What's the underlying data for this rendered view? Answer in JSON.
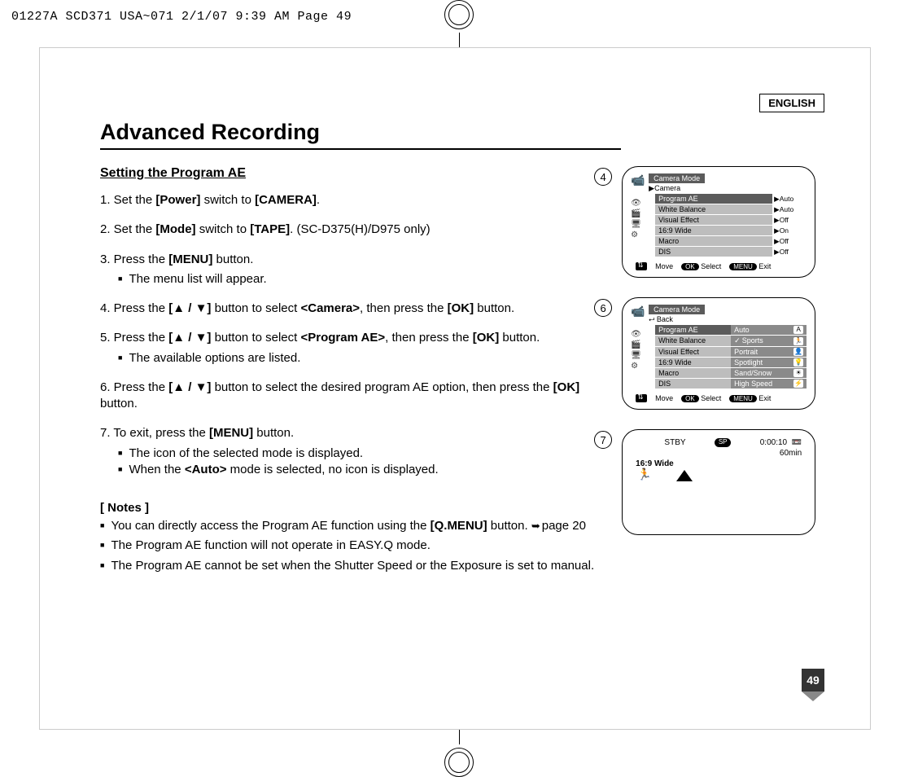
{
  "header_strip": "01227A SCD371 USA~071  2/1/07 9:39 AM  Page 49",
  "language_label": "ENGLISH",
  "page_title": "Advanced Recording",
  "section_subtitle": "Setting the Program AE",
  "steps": [
    {
      "text_html": "1. Set the <b>[Power]</b> switch to <b>[CAMERA]</b>."
    },
    {
      "text_html": "2. Set the <b>[Mode]</b> switch to <b>[TAPE]</b>. (SC-D375(H)/D975 only)"
    },
    {
      "text_html": "3. Press the <b>[MENU]</b> button.",
      "sub": [
        "The menu list will appear."
      ]
    },
    {
      "text_html": "4. Press the <b>[▲ / ▼]</b> button to select <b>&lt;Camera&gt;</b>, then press the <b>[OK]</b> button."
    },
    {
      "text_html": "5. Press the <b>[▲ / ▼]</b> button to select <b>&lt;Program AE&gt;</b>, then press the <b>[OK]</b> button.",
      "sub": [
        "The available options are listed."
      ]
    },
    {
      "text_html": "6. Press the <b>[▲ / ▼]</b> button to select the desired program AE option, then press the <b>[OK]</b> button."
    },
    {
      "text_html": "7. To exit, press the <b>[MENU]</b> button.",
      "sub": [
        "The icon of the selected mode is displayed.",
        "When the <b>&lt;Auto&gt;</b> mode is selected, no icon is displayed."
      ]
    }
  ],
  "notes_heading": "[ Notes ]",
  "notes": [
    "You can directly access the Program AE function using the <b>[Q.MENU]</b> button. <span class=\"arrow-ref\"></span>page 20",
    "The Program AE function will not operate in EASY.Q mode.",
    "The Program AE cannot be set when the Shutter Speed or the Exposure is set to manual."
  ],
  "figures": {
    "fig4": {
      "number": "4",
      "title": "Camera Mode",
      "crumb": "▶Camera",
      "rows": [
        {
          "label": "Program AE",
          "value": "▶Auto",
          "selected": true
        },
        {
          "label": "White Balance",
          "value": "▶Auto"
        },
        {
          "label": "Visual Effect",
          "value": "▶Off"
        },
        {
          "label": "16:9 Wide",
          "value": "▶On"
        },
        {
          "label": "Macro",
          "value": "▶Off"
        },
        {
          "label": "DIS",
          "value": "▶Off"
        }
      ],
      "footer": {
        "move": "Move",
        "ok": "OK",
        "select": "Select",
        "menu": "MENU",
        "exit": "Exit"
      }
    },
    "fig6": {
      "number": "6",
      "title": "Camera Mode",
      "crumb": "⮠ Back",
      "rows_left": [
        {
          "label": "Program AE",
          "selected": true
        },
        {
          "label": "White Balance"
        },
        {
          "label": "Visual Effect"
        },
        {
          "label": "16:9 Wide"
        },
        {
          "label": "Macro"
        },
        {
          "label": "DIS"
        }
      ],
      "rows_right": [
        {
          "opt": "Auto",
          "icon": "A"
        },
        {
          "opt": "Sports",
          "icon": "🏃",
          "selected": true
        },
        {
          "opt": "Portrait",
          "icon": "👤"
        },
        {
          "opt": "Spotlight",
          "icon": "💡"
        },
        {
          "opt": "Sand/Snow",
          "icon": "☀"
        },
        {
          "opt": "High Speed",
          "icon": "⚡"
        }
      ],
      "footer": {
        "move": "Move",
        "ok": "OK",
        "select": "Select",
        "menu": "MENU",
        "exit": "Exit"
      }
    },
    "fig7": {
      "number": "7",
      "status": "STBY",
      "sp": "SP",
      "timecode": "0:00:10",
      "remain": "60min",
      "wide": "16:9 Wide"
    }
  },
  "page_number": "49",
  "colors": {
    "menu_header_bg": "#5b5b5b",
    "menu_row_bg": "#bdbdbd",
    "menu_opt_bg": "#8a8a8a",
    "page_num_bg": "#333333",
    "page_num_tri": "#888888",
    "text": "#000000",
    "bg": "#ffffff"
  }
}
